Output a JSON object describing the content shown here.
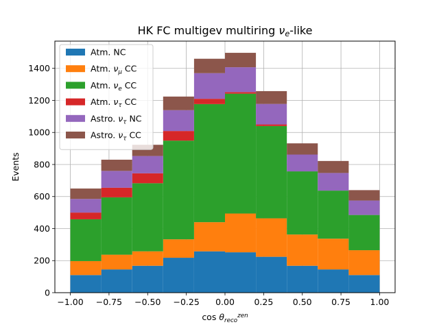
{
  "chart_data": {
    "type": "bar",
    "stacked": true,
    "title_parts": [
      {
        "t": "HK FC multigev multiring ",
        "s": ""
      },
      {
        "t": "ν",
        "s": "italic"
      },
      {
        "t": "e",
        "s": "sub-italic"
      },
      {
        "t": "-like",
        "s": ""
      }
    ],
    "xlabel_parts": [
      {
        "t": "cos ",
        "s": ""
      },
      {
        "t": "θ",
        "s": "italic"
      },
      {
        "t": "reco",
        "s": "sub-italic"
      },
      {
        "t": "zen",
        "s": "sup-italic"
      }
    ],
    "ylabel": "Events",
    "xlim": [
      -1.1,
      1.1
    ],
    "ylim": [
      0,
      1570
    ],
    "xticks": [
      -1.0,
      -0.75,
      -0.5,
      -0.25,
      0.0,
      0.25,
      0.5,
      0.75,
      1.0
    ],
    "xtick_labels": [
      "−1.00",
      "−0.75",
      "−0.50",
      "−0.25",
      "0.00",
      "0.25",
      "0.50",
      "0.75",
      "1.00"
    ],
    "yticks": [
      0,
      200,
      400,
      600,
      800,
      1000,
      1200,
      1400
    ],
    "ytick_labels": [
      "0",
      "200",
      "400",
      "600",
      "800",
      "1000",
      "1200",
      "1400"
    ],
    "grid": true,
    "legend_position": "upper-left",
    "bin_edges": [
      -1.0,
      -0.8,
      -0.6,
      -0.4,
      -0.2,
      0.0,
      0.2,
      0.4,
      0.6,
      0.8,
      1.0
    ],
    "series": [
      {
        "name_parts": [
          {
            "t": "Atm. NC",
            "s": ""
          }
        ],
        "color": "#1f77b4",
        "values": [
          110,
          145,
          168,
          218,
          258,
          252,
          224,
          168,
          145,
          110
        ]
      },
      {
        "name_parts": [
          {
            "t": "Atm. ",
            "s": ""
          },
          {
            "t": "ν",
            "s": "italic"
          },
          {
            "t": "μ",
            "s": "sub-italic"
          },
          {
            "t": " CC",
            "s": ""
          }
        ],
        "color": "#ff7f0e",
        "values": [
          87,
          92,
          90,
          115,
          182,
          242,
          240,
          195,
          192,
          155
        ]
      },
      {
        "name_parts": [
          {
            "t": "Atm. ",
            "s": ""
          },
          {
            "t": "ν",
            "s": "italic"
          },
          {
            "t": "e",
            "s": "sub-italic"
          },
          {
            "t": " CC",
            "s": ""
          }
        ],
        "color": "#2ca02c",
        "values": [
          261,
          358,
          425,
          616,
          737,
          748,
          576,
          394,
          300,
          220
        ]
      },
      {
        "name_parts": [
          {
            "t": "Atm. ",
            "s": ""
          },
          {
            "t": "ν",
            "s": "italic"
          },
          {
            "t": "τ",
            "s": "sub-italic"
          },
          {
            "t": " CC",
            "s": ""
          }
        ],
        "color": "#d62728",
        "values": [
          42,
          60,
          62,
          60,
          33,
          10,
          10,
          0,
          0,
          0
        ]
      },
      {
        "name_parts": [
          {
            "t": "Astro. ",
            "s": ""
          },
          {
            "t": "ν",
            "s": "italic"
          },
          {
            "t": "τ",
            "s": "sub-italic"
          },
          {
            "t": " NC",
            "s": ""
          }
        ],
        "color": "#9467bd",
        "values": [
          85,
          105,
          108,
          130,
          160,
          155,
          128,
          105,
          110,
          90
        ]
      },
      {
        "name_parts": [
          {
            "t": "Astro. ",
            "s": ""
          },
          {
            "t": "ν",
            "s": "italic"
          },
          {
            "t": "τ",
            "s": "sub-italic"
          },
          {
            "t": " CC",
            "s": ""
          }
        ],
        "color": "#8c564b",
        "values": [
          65,
          70,
          70,
          85,
          90,
          90,
          80,
          70,
          75,
          65
        ]
      }
    ]
  }
}
